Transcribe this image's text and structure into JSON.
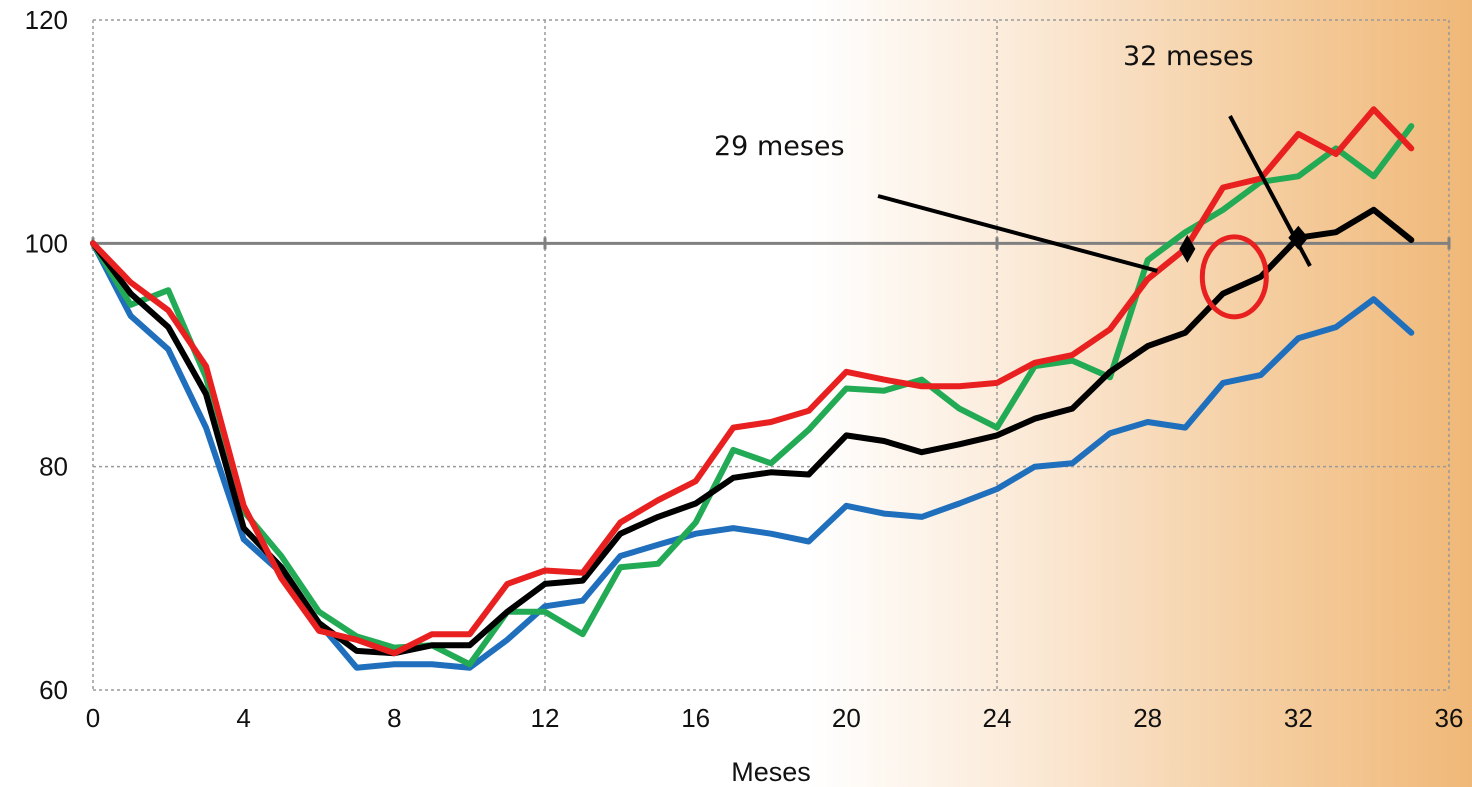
{
  "chart_data": {
    "type": "line",
    "xlabel": "Meses",
    "ylabel": "",
    "xlim": [
      0,
      36
    ],
    "ylim": [
      60,
      120
    ],
    "x_ticks": [
      0,
      4,
      8,
      12,
      16,
      20,
      24,
      28,
      32,
      36
    ],
    "y_ticks": [
      60,
      80,
      100,
      120
    ],
    "grid": true,
    "reference_line": 100,
    "x": [
      0,
      1,
      2,
      3,
      4,
      5,
      6,
      7,
      8,
      9,
      10,
      11,
      12,
      13,
      14,
      15,
      16,
      17,
      18,
      19,
      20,
      21,
      22,
      23,
      24,
      25,
      26,
      27,
      28,
      29,
      30,
      31,
      32,
      33,
      34,
      35
    ],
    "series": [
      {
        "color": "#1f6fbd",
        "values": [
          100,
          93.5,
          90.5,
          83.5,
          73.5,
          70.5,
          66,
          62,
          62.3,
          62.3,
          62,
          64.5,
          67.5,
          68,
          72,
          73,
          74,
          74.5,
          74,
          73.3,
          76.5,
          75.8,
          75.5,
          76.7,
          78,
          80,
          80.3,
          83,
          84,
          83.5,
          87.5,
          88.2,
          91.5,
          92.5,
          95,
          92
        ]
      },
      {
        "color": "#22aa55",
        "values": [
          100,
          94.5,
          95.8,
          88,
          76,
          72,
          67,
          64.8,
          63.8,
          64,
          62.3,
          67,
          67,
          65,
          71,
          71.3,
          75,
          81.5,
          80.3,
          83.3,
          87,
          86.8,
          87.8,
          85.2,
          83.5,
          89,
          89.5,
          88,
          98.5,
          101,
          103,
          105.5,
          106,
          108.5,
          106,
          110.5
        ]
      },
      {
        "color": "#000000",
        "values": [
          100,
          95.5,
          92.5,
          86.5,
          74.5,
          71,
          66,
          63.5,
          63.3,
          64,
          64,
          67,
          69.5,
          69.8,
          74,
          75.5,
          76.7,
          79,
          79.5,
          79.3,
          82.8,
          82.3,
          81.3,
          82,
          82.8,
          84.3,
          85.2,
          88.5,
          90.8,
          92,
          95.5,
          97,
          100.5,
          101,
          103,
          100.3
        ]
      },
      {
        "color": "#e82020",
        "values": [
          100,
          96.5,
          94,
          89,
          76.5,
          70,
          65.3,
          64.5,
          63.3,
          65,
          65,
          69.5,
          70.7,
          70.5,
          75,
          77,
          78.7,
          83.5,
          84,
          85,
          88.5,
          87.8,
          87.2,
          87.2,
          87.5,
          89.3,
          90,
          92.3,
          96.8,
          99.5,
          105,
          105.8,
          109.8,
          108,
          112,
          108.5
        ]
      }
    ],
    "annotations": [
      {
        "text": "29 meses",
        "month": 29
      },
      {
        "text": "32 meses",
        "month": 32
      }
    ]
  }
}
